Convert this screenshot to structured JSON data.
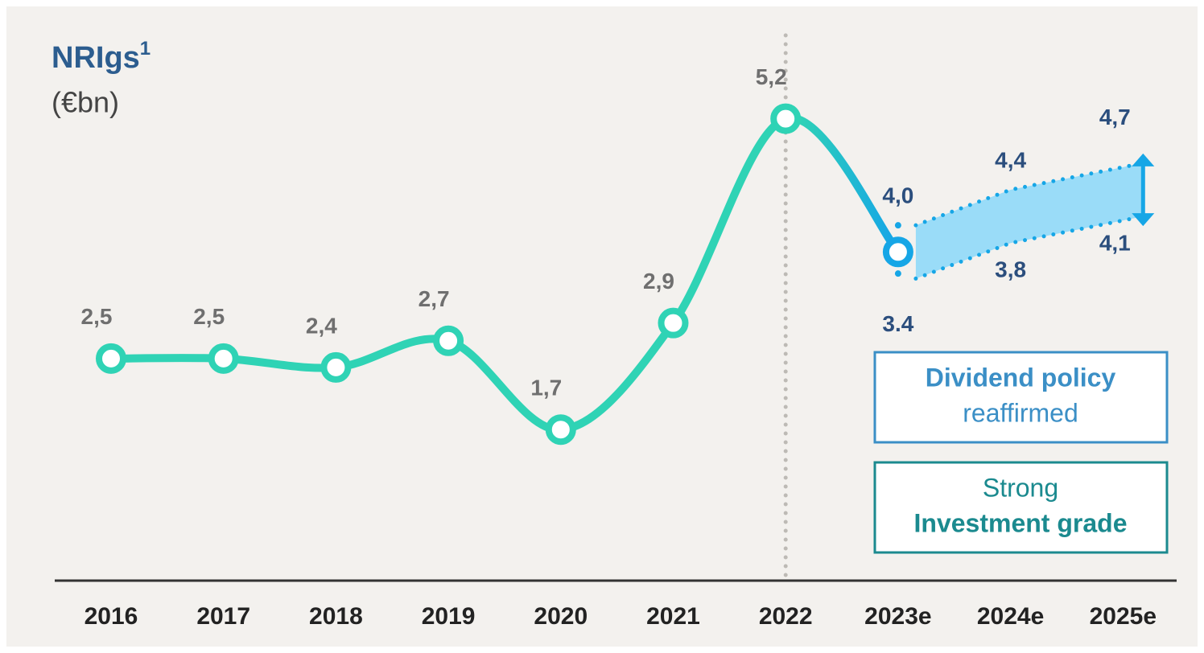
{
  "chart_data": {
    "type": "line",
    "title": "NRIgs",
    "title_superscript": "1",
    "subtitle": "(€bn)",
    "categories": [
      "2016",
      "2017",
      "2018",
      "2019",
      "2020",
      "2021",
      "2022",
      "2023e",
      "2024e",
      "2025e"
    ],
    "values": [
      2.5,
      2.5,
      2.4,
      2.7,
      1.7,
      2.9,
      5.2,
      3.7,
      null,
      null
    ],
    "value_labels": [
      "2,5",
      "2,5",
      "2,4",
      "2,7",
      "1,7",
      "2,9",
      "5,2",
      null,
      null,
      null
    ],
    "color": "#2fd3b5",
    "forecast_color": "#16a6e6",
    "range": {
      "low": [
        null,
        null,
        null,
        null,
        null,
        null,
        null,
        3.4,
        3.8,
        4.1
      ],
      "high": [
        null,
        null,
        null,
        null,
        null,
        null,
        null,
        4.0,
        4.4,
        4.7
      ],
      "low_labels": [
        null,
        null,
        null,
        null,
        null,
        null,
        null,
        "3.4",
        "3,8",
        "4,1"
      ],
      "high_labels": [
        null,
        null,
        null,
        null,
        null,
        null,
        null,
        "4,0",
        "4,4",
        "4,7"
      ],
      "color": "#9adcf8"
    },
    "ylim": [
      0,
      6.5
    ],
    "divider_index": 6,
    "annotations": [
      {
        "lines": [
          {
            "text": "Dividend policy",
            "bold": true
          },
          {
            "text": "reaffirmed",
            "bold": false
          }
        ],
        "color": "#3b8fc6"
      },
      {
        "lines": [
          {
            "text": "Strong",
            "bold": false
          },
          {
            "text": "Investment grade",
            "bold": true
          }
        ],
        "color": "#1b8a8f"
      }
    ]
  }
}
